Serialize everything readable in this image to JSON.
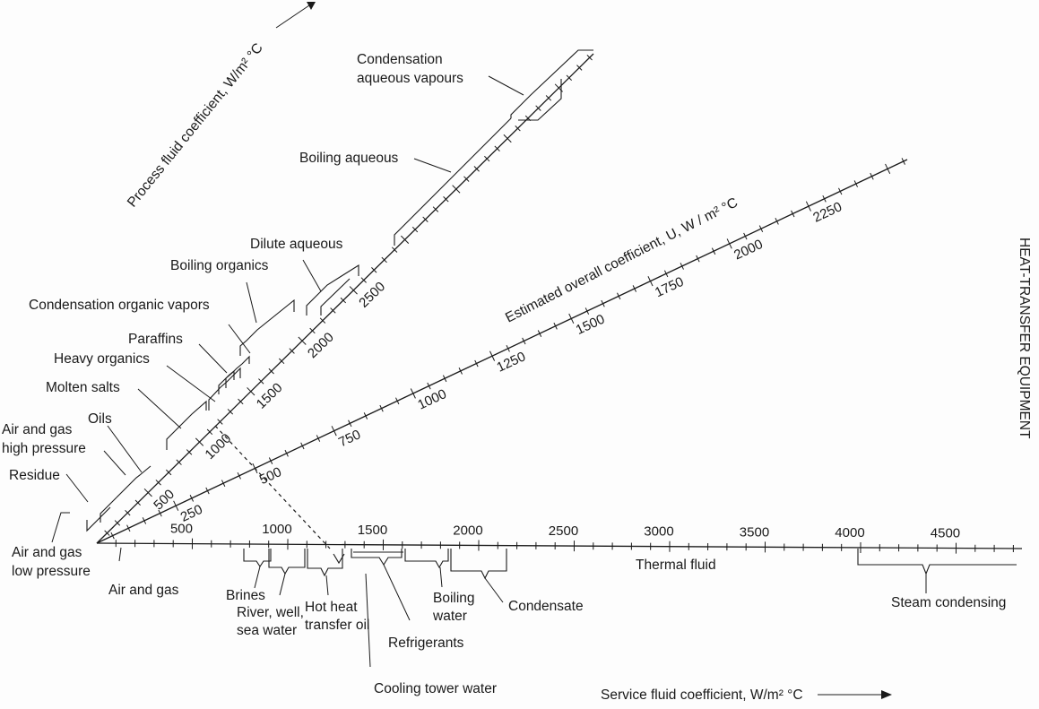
{
  "diagram": {
    "side_title": "HEAT-TRANSFER EQUIPMENT",
    "axes": {
      "service": {
        "title": "Service fluid coefficient, W/m² °C",
        "ticks": [
          "500",
          "1000",
          "1500",
          "2000",
          "2500",
          "3000",
          "3500",
          "4000",
          "4500"
        ]
      },
      "overall": {
        "title": "Estimated overall coefficient, U, W / m² °C",
        "ticks": [
          "250",
          "500",
          "750",
          "1000",
          "1250",
          "1500",
          "1750",
          "2000",
          "2250"
        ]
      },
      "process": {
        "title": "Process fluid coefficient, W/m² °C",
        "ticks": [
          "500",
          "1000",
          "1500",
          "2000",
          "2500"
        ]
      }
    },
    "service_fluids": {
      "air_gas_low": [
        "Air and gas",
        "low pressure"
      ],
      "air_gas": "Air and gas",
      "brines": "Brines",
      "river": [
        "River, well,",
        "sea water"
      ],
      "hot_oil": [
        "Hot heat",
        "transfer oil"
      ],
      "refrigerants": "Refrigerants",
      "cooling_tower": "Cooling tower water",
      "boiling_water": [
        "Boiling",
        "water"
      ],
      "condensate": "Condensate",
      "thermal_fluid": "Thermal fluid",
      "steam": "Steam condensing"
    },
    "process_fluids": {
      "cond_aqueous": [
        "Condensation",
        "aqueous vapours"
      ],
      "boiling_aqueous": "Boiling aqueous",
      "dilute_aqueous": "Dilute aqueous",
      "boiling_organics": "Boiling organics",
      "cond_organic": "Condensation organic vapors",
      "paraffins": "Paraffins",
      "heavy_organics": "Heavy organics",
      "molten_salts": "Molten salts",
      "oils": "Oils",
      "air_gas_high": [
        "Air and gas",
        "high pressure"
      ],
      "residue": "Residue"
    }
  }
}
